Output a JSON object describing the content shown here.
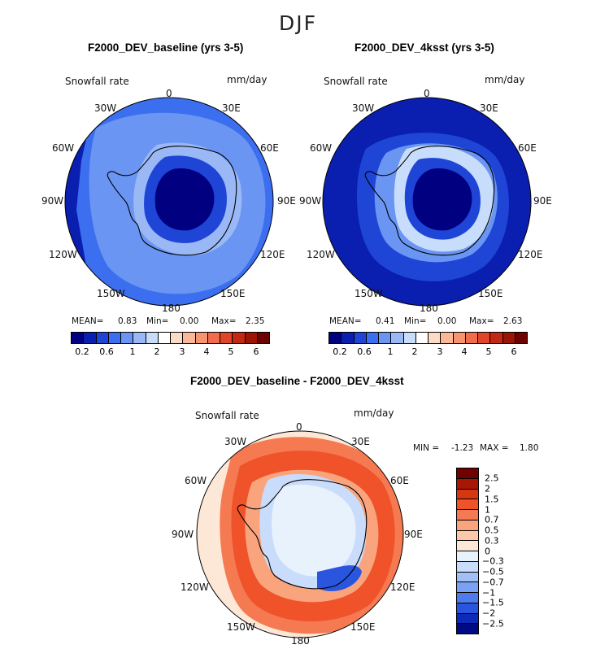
{
  "title": "DJF",
  "chart_data": [
    {
      "type": "heatmap",
      "title": "F2000_DEV_baseline (yrs 3-5)",
      "variable": "Snowfall rate",
      "units": "mm/day",
      "projection": "south polar stereographic",
      "lon_labels": [
        "0",
        "30E",
        "60E",
        "90E",
        "120E",
        "150E",
        "180",
        "150W",
        "120W",
        "90W",
        "60W",
        "30W"
      ],
      "stats": {
        "mean_label": "MEAN=",
        "mean": "0.83",
        "min_label": "Min=",
        "min": "0.00",
        "max_label": "Max=",
        "max": "2.35"
      },
      "colorbar_ticks": [
        "0.2",
        "0.6",
        "1",
        "2",
        "3",
        "4",
        "5",
        "6"
      ]
    },
    {
      "type": "heatmap",
      "title": "F2000_DEV_4ksst (yrs 3-5)",
      "variable": "Snowfall rate",
      "units": "mm/day",
      "projection": "south polar stereographic",
      "lon_labels": [
        "0",
        "30E",
        "60E",
        "90E",
        "120E",
        "150E",
        "180",
        "150W",
        "120W",
        "90W",
        "60W",
        "30W"
      ],
      "stats": {
        "mean_label": "MEAN=",
        "mean": "0.41",
        "min_label": "Min=",
        "min": "0.00",
        "max_label": "Max=",
        "max": "2.63"
      },
      "colorbar_ticks": [
        "0.2",
        "0.6",
        "1",
        "2",
        "3",
        "4",
        "5",
        "6"
      ]
    },
    {
      "type": "heatmap",
      "title": "F2000_DEV_baseline - F2000_DEV_4ksst",
      "variable": "Snowfall rate",
      "units": "mm/day",
      "projection": "south polar stereographic",
      "lon_labels": [
        "0",
        "30E",
        "60E",
        "90E",
        "120E",
        "150E",
        "180",
        "150W",
        "120W",
        "90W",
        "60W",
        "30W"
      ],
      "stats": {
        "min_label": "MIN =",
        "min": "-1.23",
        "max_label": "MAX =",
        "max": "1.80"
      },
      "colorbar_ticks": [
        "2.5",
        "2",
        "1.5",
        "1",
        "0.7",
        "0.5",
        "0.3",
        "0",
        "−0.3",
        "−0.5",
        "−0.7",
        "−1",
        "−1.5",
        "−2",
        "−2.5"
      ]
    }
  ],
  "colors": {
    "seq": [
      "#000080",
      "#0a1fb0",
      "#1f45d6",
      "#3c6ff0",
      "#6a95f2",
      "#9ab8f6",
      "#c8dcfb",
      "#ffffff",
      "#fddcc6",
      "#fbb898",
      "#f79470",
      "#f06c4a",
      "#e04527",
      "#c22812",
      "#9c1404",
      "#6e0200"
    ],
    "diverge": [
      "#6e0200",
      "#a81606",
      "#d8360f",
      "#f0522a",
      "#f57a52",
      "#f9a47d",
      "#fbc9a9",
      "#fde8d8",
      "#e8f2fd",
      "#c9dcfb",
      "#a2c0f6",
      "#7ba1f2",
      "#4f7ced",
      "#2a55de",
      "#0d2bb8",
      "#010a85"
    ]
  }
}
